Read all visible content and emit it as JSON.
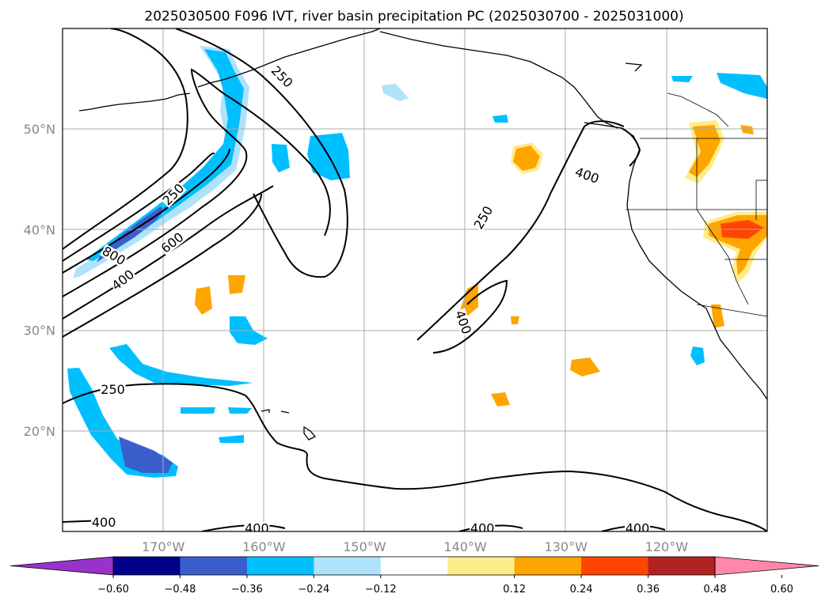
{
  "title": "2025030500 F096 IVT, river basin precipitation PC (2025030700 - 2025031000)",
  "map": {
    "lon_range": [
      -180,
      -110
    ],
    "lat_range": [
      10,
      60
    ],
    "lat_ticks": [
      {
        "value": 50,
        "label": "50°N"
      },
      {
        "value": 40,
        "label": "40°N"
      },
      {
        "value": 30,
        "label": "30°N"
      },
      {
        "value": 20,
        "label": "20°N"
      }
    ],
    "lon_ticks": [
      {
        "value": -170,
        "label": "170°W"
      },
      {
        "value": -160,
        "label": "160°W"
      },
      {
        "value": -150,
        "label": "150°W"
      },
      {
        "value": -140,
        "label": "140°W"
      },
      {
        "value": -130,
        "label": "130°W"
      },
      {
        "value": -120,
        "label": "120°W"
      }
    ],
    "grid": true,
    "contour_labels": [
      {
        "text": "250",
        "lon": -169.0,
        "lat": 43.5,
        "rot": -45
      },
      {
        "text": "800",
        "lon": -174.9,
        "lat": 37.4,
        "rot": 30
      },
      {
        "text": "600",
        "lon": -169.1,
        "lat": 38.7,
        "rot": -38
      },
      {
        "text": "400",
        "lon": -174.0,
        "lat": 35.0,
        "rot": -38
      },
      {
        "text": "250",
        "lon": -158.2,
        "lat": 55.2,
        "rot": 45
      },
      {
        "text": "250",
        "lon": -175.0,
        "lat": 24.1,
        "rot": 0
      },
      {
        "text": "400",
        "lon": -175.9,
        "lat": 10.9,
        "rot": 0
      },
      {
        "text": "400",
        "lon": -160.7,
        "lat": 10.3,
        "rot": 0
      },
      {
        "text": "250",
        "lon": -138.2,
        "lat": 41.2,
        "rot": -60
      },
      {
        "text": "400",
        "lon": -140.2,
        "lat": 30.8,
        "rot": 70
      },
      {
        "text": "400",
        "lon": -127.9,
        "lat": 45.4,
        "rot": 20
      },
      {
        "text": "400",
        "lon": -138.3,
        "lat": 10.3,
        "rot": 0
      },
      {
        "text": "400",
        "lon": -122.9,
        "lat": 10.3,
        "rot": 0
      }
    ]
  },
  "colorbar": {
    "tick_labels": [
      "−0.60",
      "−0.48",
      "−0.36",
      "−0.24",
      "−0.12",
      "0.12",
      "0.24",
      "0.36",
      "0.48",
      "0.60"
    ],
    "under_color": "#9932cc",
    "over_color": "#ff88aa",
    "colors": [
      "#00008b",
      "#3a5fcd",
      "#00bfff",
      "#afe3fb",
      "#ffffff",
      "#ffec8b",
      "#ffa500",
      "#ff4500",
      "#b22222"
    ]
  }
}
